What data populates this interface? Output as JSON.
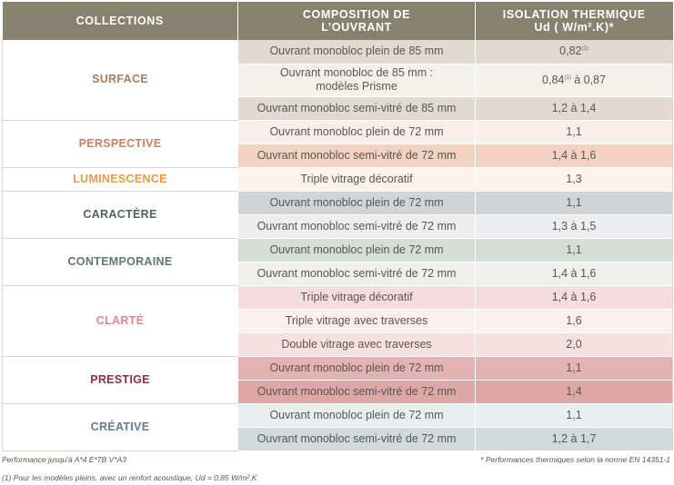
{
  "headers": {
    "collections": "COLLECTIONS",
    "composition_l1": "COMPOSITION DE",
    "composition_l2": "L’OUVRANT",
    "isolation_l1": "ISOLATION THERMIQUE",
    "isolation_l2": "Ud ( W/m².K)*"
  },
  "collections": [
    {
      "name": "SURFACE",
      "color": "#a87e61",
      "rows": [
        {
          "composition": "Ouvrant monobloc plein de 85 mm",
          "value": "0,82",
          "value_sup": "(1)",
          "value_after": "",
          "bg": "#e2dad1"
        },
        {
          "composition_l1": "Ouvrant monobloc de 85 mm :",
          "composition_l2": "modèles Prisme",
          "value": "0,84",
          "value_sup": "(1)",
          "value_after": " à 0,87",
          "bg": "#f4f0ec"
        },
        {
          "composition": "Ouvrant monobloc semi-vitré de 85 mm",
          "value": "1,2 à 1,4",
          "bg": "#e2dad1"
        }
      ]
    },
    {
      "name": "PERSPECTIVE",
      "color": "#d57c58",
      "rows": [
        {
          "composition": "Ouvrant monobloc plein de 72 mm",
          "value": "1,1",
          "bg": "#fbeee9"
        },
        {
          "composition": "Ouvrant monobloc semi-vitré de 72 mm",
          "value": "1,4 à 1,6",
          "bg": "#f4d2c2"
        }
      ]
    },
    {
      "name": "LUMINESCENCE",
      "color": "#e99a45",
      "rows": [
        {
          "composition": "Triple vitrage décoratif",
          "value": "1,3",
          "bg": "#fdf3e8"
        }
      ]
    },
    {
      "name": "CARACTÈRE",
      "color": "#4e5f6e",
      "rows": [
        {
          "composition": "Ouvrant monobloc plein de 72 mm",
          "value": "1,1",
          "bg": "#cfd4d8"
        },
        {
          "composition": "Ouvrant monobloc semi-vitré de 72 mm",
          "value": "1,3 à 1,5",
          "bg": "#eceef0"
        }
      ]
    },
    {
      "name": "CONTEMPORAINE",
      "color": "#5e7a6c",
      "rows": [
        {
          "composition": "Ouvrant monobloc plein de 72 mm",
          "value": "1,1",
          "bg": "#d4ddd6"
        },
        {
          "composition": "Ouvrant monobloc semi-vitré de 72 mm",
          "value": "1,4 à 1,6",
          "bg": "#edf0ed"
        }
      ]
    },
    {
      "name": "CLARTÉ",
      "color": "#d98892",
      "rows": [
        {
          "composition": "Triple vitrage décoratif",
          "value": "1,4 à 1,6",
          "bg": "#f6dcdc"
        },
        {
          "composition": "Triple vitrage avec traverses",
          "value": "1,6",
          "bg": "#fbf0ef"
        },
        {
          "composition": "Double vitrage avec traverses",
          "value": "2,0",
          "bg": "#f6e1e0"
        }
      ]
    },
    {
      "name": "PRESTIGE",
      "color": "#9c2b3a",
      "rows": [
        {
          "composition": "Ouvrant monobloc plein de 72 mm",
          "value": "1,1",
          "bg": "#e5b2b2"
        },
        {
          "composition": "Ouvrant monobloc semi-vitré de 72 mm",
          "value": "1,4",
          "bg": "#dea6a4"
        }
      ]
    },
    {
      "name": "CRÉATIVE",
      "color": "#5b7f8c",
      "rows": [
        {
          "composition": "Ouvrant monobloc plein de 72 mm",
          "value": "1,1",
          "bg": "#eaeeef"
        },
        {
          "composition": "Ouvrant monobloc semi-vitré de 72 mm",
          "value": "1,2 à 1,7",
          "bg": "#d0d9db"
        }
      ]
    }
  ],
  "footnotes": {
    "performance": "Performance jusqu'à A*4 E*7B V*A3",
    "thermal": "* Performances thermiques selon la norme EN 14351-1",
    "note1": "(1) Pour les modèles pleins, avec un renfort acoustique, Ud = 0,85 W/m².K"
  }
}
